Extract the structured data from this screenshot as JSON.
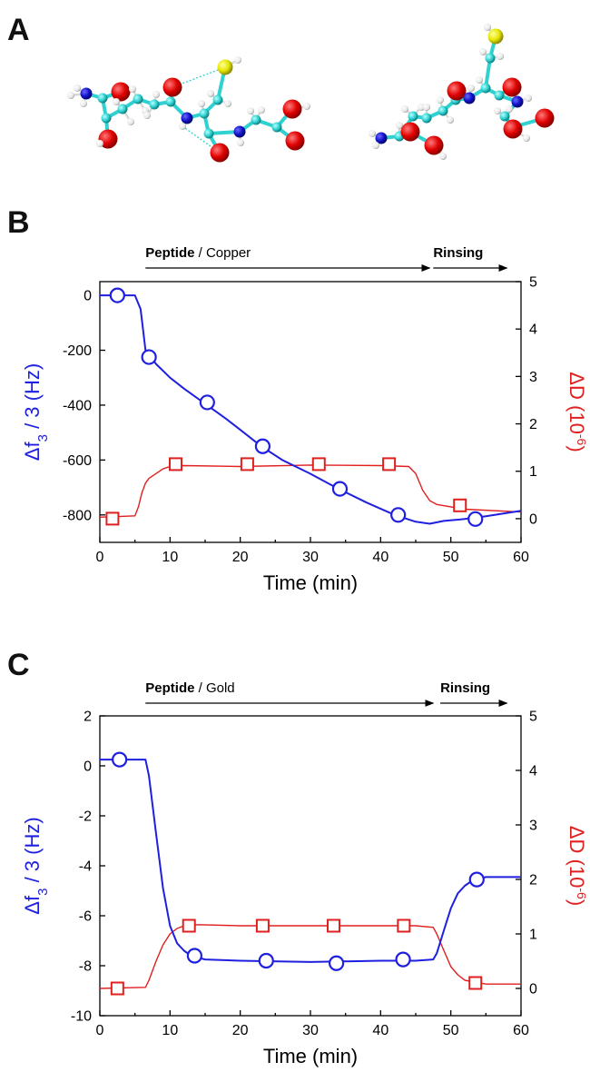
{
  "panels": {
    "a": {
      "letter": "A"
    },
    "b": {
      "letter": "B"
    },
    "c": {
      "letter": "C"
    }
  },
  "colors": {
    "frequency": "#1f1fe0",
    "dissipation": "#e01f1f",
    "carbon": "#2fd1d1",
    "oxygen": "#e00000",
    "nitrogen": "#1212c8",
    "sulfur": "#e6e600",
    "hydrogen": "#f2f2f2"
  },
  "chart_data": [
    {
      "id": "b",
      "type": "line",
      "xlabel": "Time (min)",
      "ylabel_left": {
        "symbol": "Δf",
        "sub": "3",
        "rest": " / 3 (Hz)"
      },
      "ylabel_right": {
        "main": "ΔD (10",
        "sup": "-6",
        "close": ")"
      },
      "xlim": [
        0,
        60
      ],
      "ylim_left": [
        -900,
        50
      ],
      "ylim_right": [
        -0.5,
        5
      ],
      "xticks": [
        0,
        10,
        20,
        30,
        40,
        50,
        60
      ],
      "yticks_left": [
        0,
        -200,
        -400,
        -600,
        -800
      ],
      "yticks_right": [
        0,
        1,
        2,
        3,
        4,
        5
      ],
      "phases": [
        {
          "bold": "Peptide",
          "normal": " / Copper",
          "x_start": 6.5,
          "x_end": 47
        },
        {
          "bold": "Rinsing",
          "normal": "",
          "x_start": 47.5,
          "x_end": 58
        }
      ],
      "series": [
        {
          "axis": "left",
          "marker": "circle",
          "x": [
            0,
            5,
            5.8,
            6.5,
            8,
            10,
            12,
            15,
            18,
            20,
            23,
            26,
            30,
            34,
            38,
            42,
            45,
            47,
            49,
            52,
            55,
            60
          ],
          "y": [
            0,
            0,
            -50,
            -200,
            -250,
            -300,
            -340,
            -395,
            -450,
            -490,
            -550,
            -600,
            -650,
            -705,
            -755,
            -800,
            -825,
            -832,
            -822,
            -815,
            -805,
            -785
          ],
          "markers_x": [
            2.5,
            7,
            15.3,
            23.2,
            34.2,
            42.5,
            53.5
          ],
          "markers_y": [
            0,
            -225,
            -390,
            -550,
            -705,
            -800,
            -815
          ]
        },
        {
          "axis": "right",
          "marker": "square",
          "x": [
            0,
            5,
            5.5,
            6,
            6.5,
            7,
            8,
            9,
            10,
            12,
            20,
            30,
            40,
            44,
            45,
            46,
            47,
            48,
            52,
            60
          ],
          "y": [
            0.03,
            0.06,
            0.25,
            0.55,
            0.75,
            0.85,
            0.95,
            1.05,
            1.1,
            1.12,
            1.1,
            1.13,
            1.12,
            1.1,
            0.95,
            0.6,
            0.38,
            0.3,
            0.2,
            0.14
          ],
          "markers_x": [
            1.8,
            10.8,
            21,
            31.2,
            41.2,
            51.3
          ],
          "markers_y": [
            0.0,
            1.15,
            1.15,
            1.15,
            1.15,
            0.28
          ]
        }
      ]
    },
    {
      "id": "c",
      "type": "line",
      "xlabel": "Time (min)",
      "ylabel_left": {
        "symbol": "Δf",
        "sub": "3",
        "rest": " / 3 (Hz)"
      },
      "ylabel_right": {
        "main": "ΔD (10",
        "sup": "-6",
        "close": ")"
      },
      "xlim": [
        0,
        60
      ],
      "ylim_left": [
        -10,
        2
      ],
      "ylim_right": [
        -0.5,
        5
      ],
      "xticks": [
        0,
        10,
        20,
        30,
        40,
        50,
        60
      ],
      "yticks_left": [
        2,
        0,
        -2,
        -4,
        -6,
        -8,
        -10
      ],
      "yticks_right": [
        0,
        1,
        2,
        3,
        4,
        5
      ],
      "phases": [
        {
          "bold": "Peptide",
          "normal": " / Gold",
          "x_start": 6.5,
          "x_end": 47.5
        },
        {
          "bold": "Rinsing",
          "normal": "",
          "x_start": 48.5,
          "x_end": 58
        }
      ],
      "series": [
        {
          "axis": "left",
          "marker": "circle",
          "x": [
            0,
            6.5,
            7,
            8,
            9,
            10,
            11,
            12,
            13,
            15,
            20,
            30,
            40,
            45,
            47.5,
            48,
            49,
            50,
            51,
            52,
            53,
            55,
            57,
            60
          ],
          "y": [
            0.25,
            0.25,
            -0.4,
            -2.7,
            -4.9,
            -6.4,
            -7.1,
            -7.4,
            -7.6,
            -7.75,
            -7.8,
            -7.85,
            -7.8,
            -7.8,
            -7.75,
            -7.5,
            -6.6,
            -5.7,
            -5.1,
            -4.8,
            -4.6,
            -4.45,
            -4.45,
            -4.45
          ],
          "markers_x": [
            2.8,
            13.5,
            23.7,
            33.7,
            43.2,
            53.7
          ],
          "markers_y": [
            0.25,
            -7.6,
            -7.8,
            -7.9,
            -7.75,
            -4.55
          ]
        },
        {
          "axis": "right",
          "marker": "square",
          "x": [
            0,
            6.5,
            7,
            8,
            9,
            10,
            11,
            12,
            14,
            20,
            30,
            40,
            45,
            47.5,
            48,
            49,
            50,
            51,
            52,
            55,
            60
          ],
          "y": [
            0.0,
            0.02,
            0.15,
            0.5,
            0.8,
            1.0,
            1.1,
            1.15,
            1.17,
            1.15,
            1.15,
            1.15,
            1.15,
            1.12,
            1.0,
            0.7,
            0.4,
            0.25,
            0.15,
            0.08,
            0.08
          ],
          "markers_x": [
            2.5,
            12.7,
            23.2,
            33.3,
            43.3,
            53.5
          ],
          "markers_y": [
            0.0,
            1.15,
            1.15,
            1.15,
            1.15,
            0.1
          ]
        }
      ]
    }
  ]
}
